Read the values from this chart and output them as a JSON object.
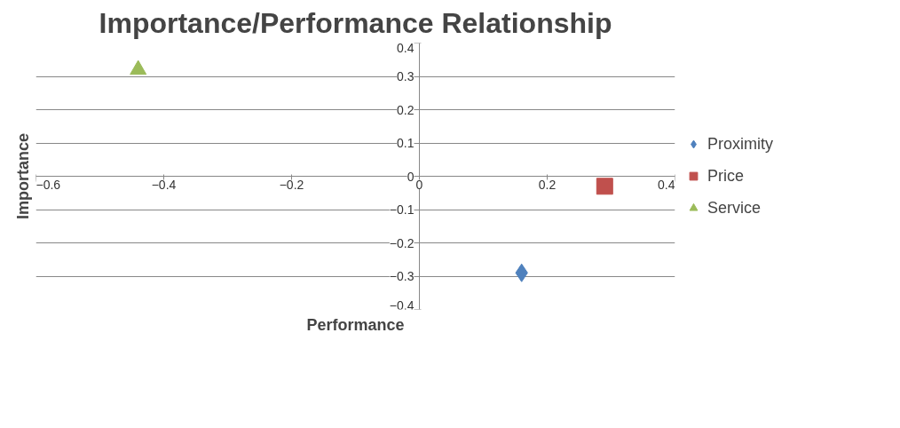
{
  "chart_data": {
    "type": "scatter",
    "title": "Importance/Performance Relationship",
    "xlabel": "Performance",
    "ylabel": "Importance",
    "series": [
      {
        "name": "Proximity",
        "color": "#4f81bd",
        "marker": "diamond",
        "x": [
          0.16
        ],
        "values": [
          -0.29
        ]
      },
      {
        "name": "Price",
        "color": "#c0504d",
        "marker": "square",
        "x": [
          0.29
        ],
        "values": [
          -0.03
        ]
      },
      {
        "name": "Service",
        "color": "#9bbb59",
        "marker": "triangle",
        "x": [
          -0.44
        ],
        "values": [
          0.32
        ]
      }
    ],
    "xlim": [
      -0.6,
      0.4
    ],
    "ylim": [
      -0.4,
      0.4
    ],
    "xticks": [
      -0.6,
      -0.4,
      -0.2,
      0,
      0.2,
      0.4
    ],
    "yticks": [
      -0.4,
      -0.3,
      -0.2,
      -0.1,
      0,
      0.1,
      0.2,
      0.3,
      0.4
    ],
    "grid": "y",
    "legend": "right"
  }
}
